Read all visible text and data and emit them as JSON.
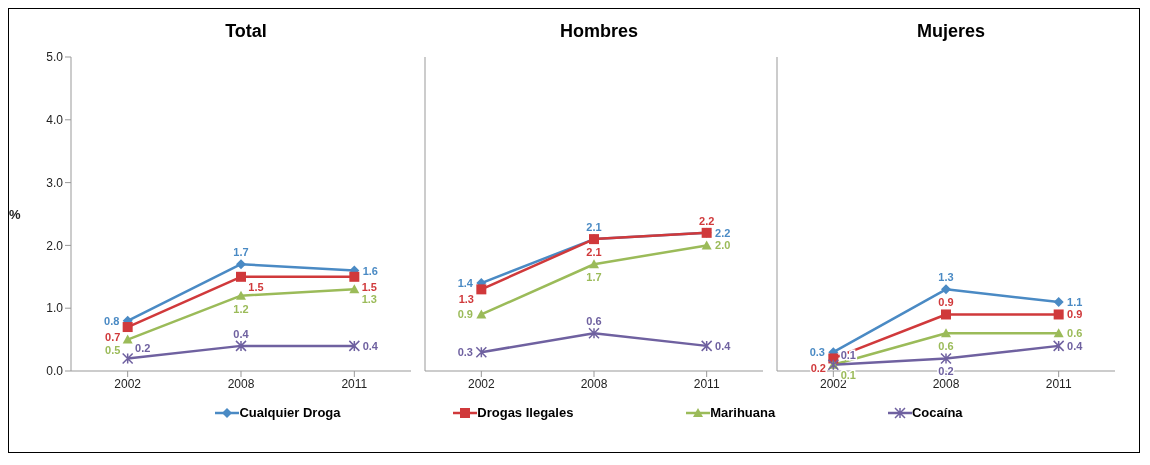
{
  "chart_data": [
    {
      "type": "line",
      "title": "Total",
      "ylabel": "%",
      "categories": [
        "2002",
        "2008",
        "2011"
      ],
      "ylim": [
        0,
        5
      ],
      "yticks": [
        {
          "value": 0,
          "label": "0.0"
        },
        {
          "value": 1,
          "label": "1.0"
        },
        {
          "value": 2,
          "label": "2.0"
        },
        {
          "value": 3,
          "label": "3.0"
        },
        {
          "value": 4,
          "label": "4.0"
        },
        {
          "value": 5,
          "label": "5.0"
        }
      ],
      "grid": false,
      "legend": "bottom",
      "series": [
        {
          "name": "Cualquier Droga",
          "color": "#4a8ac4",
          "marker": "diamond",
          "values": [
            0.8,
            1.7,
            1.6
          ],
          "value_labels": [
            "0.8",
            "1.7",
            "1.6"
          ]
        },
        {
          "name": "Drogas Ilegales",
          "color": "#d0393b",
          "marker": "square",
          "values": [
            0.7,
            1.5,
            1.5
          ],
          "value_labels": [
            "0.7",
            "1.5",
            "1.5"
          ]
        },
        {
          "name": "Marihuana",
          "color": "#9bbb59",
          "marker": "triangle",
          "values": [
            0.5,
            1.2,
            1.3
          ],
          "value_labels": [
            "0.5",
            "1.2",
            "1.3"
          ]
        },
        {
          "name": "Cocaína",
          "color": "#6f61a0",
          "marker": "cross",
          "values": [
            0.2,
            0.4,
            0.4
          ],
          "value_labels": [
            "0.2",
            "0.4",
            "0.4"
          ]
        }
      ]
    },
    {
      "type": "line",
      "title": "Hombres",
      "categories": [
        "2002",
        "2008",
        "2011"
      ],
      "ylim": [
        0,
        5
      ],
      "tick_labels": "x",
      "grid": false,
      "series": [
        {
          "color": "#4a8ac4",
          "marker": "diamond",
          "values": [
            1.4,
            2.1,
            2.2
          ],
          "value_labels": [
            "1.4",
            "2.1",
            "2.2"
          ]
        },
        {
          "color": "#d0393b",
          "marker": "square",
          "values": [
            1.3,
            2.1,
            2.2
          ],
          "value_labels": [
            "1.3",
            "2.1",
            "2.2"
          ]
        },
        {
          "color": "#9bbb59",
          "marker": "triangle",
          "values": [
            0.9,
            1.7,
            2.0
          ],
          "value_labels": [
            "0.9",
            "1.7",
            "2.0"
          ]
        },
        {
          "color": "#6f61a0",
          "marker": "cross",
          "values": [
            0.3,
            0.6,
            0.4
          ],
          "value_labels": [
            "0.3",
            "0.6",
            "0.4"
          ]
        }
      ]
    },
    {
      "type": "line",
      "title": "Mujeres",
      "categories": [
        "2002",
        "2008",
        "2011"
      ],
      "ylim": [
        0,
        5
      ],
      "tick_labels": "x",
      "grid": false,
      "series": [
        {
          "color": "#4a8ac4",
          "marker": "diamond",
          "values": [
            0.3,
            1.3,
            1.1
          ],
          "value_labels": [
            "0.3",
            "1.3",
            "1.1"
          ]
        },
        {
          "color": "#d0393b",
          "marker": "square",
          "values": [
            0.2,
            0.9,
            0.9
          ],
          "value_labels": [
            "0.2",
            "0.9",
            "0.9"
          ]
        },
        {
          "color": "#9bbb59",
          "marker": "triangle",
          "values": [
            0.1,
            0.6,
            0.6
          ],
          "value_labels": [
            "0.1",
            "0.6",
            "0.6"
          ]
        },
        {
          "color": "#6f61a0",
          "marker": "cross",
          "values": [
            0.1,
            0.2,
            0.4
          ],
          "value_labels": [
            "0.1",
            "0.2",
            "0.4"
          ]
        }
      ]
    }
  ]
}
